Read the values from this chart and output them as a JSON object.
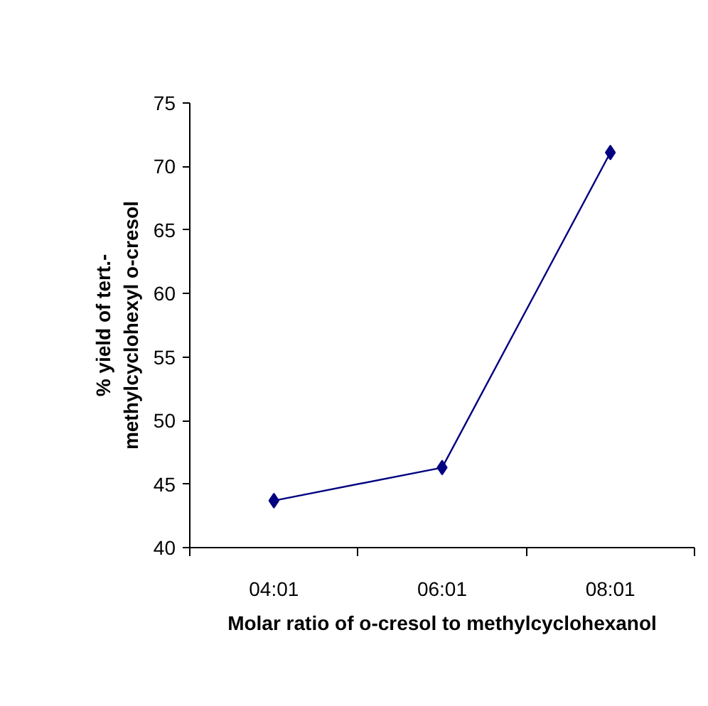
{
  "chart_data": {
    "type": "line",
    "xlabel": "Molar ratio of o-cresol to methylcyclohexanol",
    "ylabel": "% yield of tert.-\nmethylcyclohexyl o-cresol",
    "categories": [
      "04:01",
      "06:01",
      "08:01"
    ],
    "series": [
      {
        "color": "#000080",
        "values": [
          43.7,
          46.3,
          71.1
        ]
      }
    ],
    "ylim": [
      40,
      75
    ],
    "yticks": [
      40,
      45,
      50,
      55,
      60,
      65,
      70,
      75
    ],
    "marker": "diamond",
    "line_style": "solid",
    "grid": false
  }
}
